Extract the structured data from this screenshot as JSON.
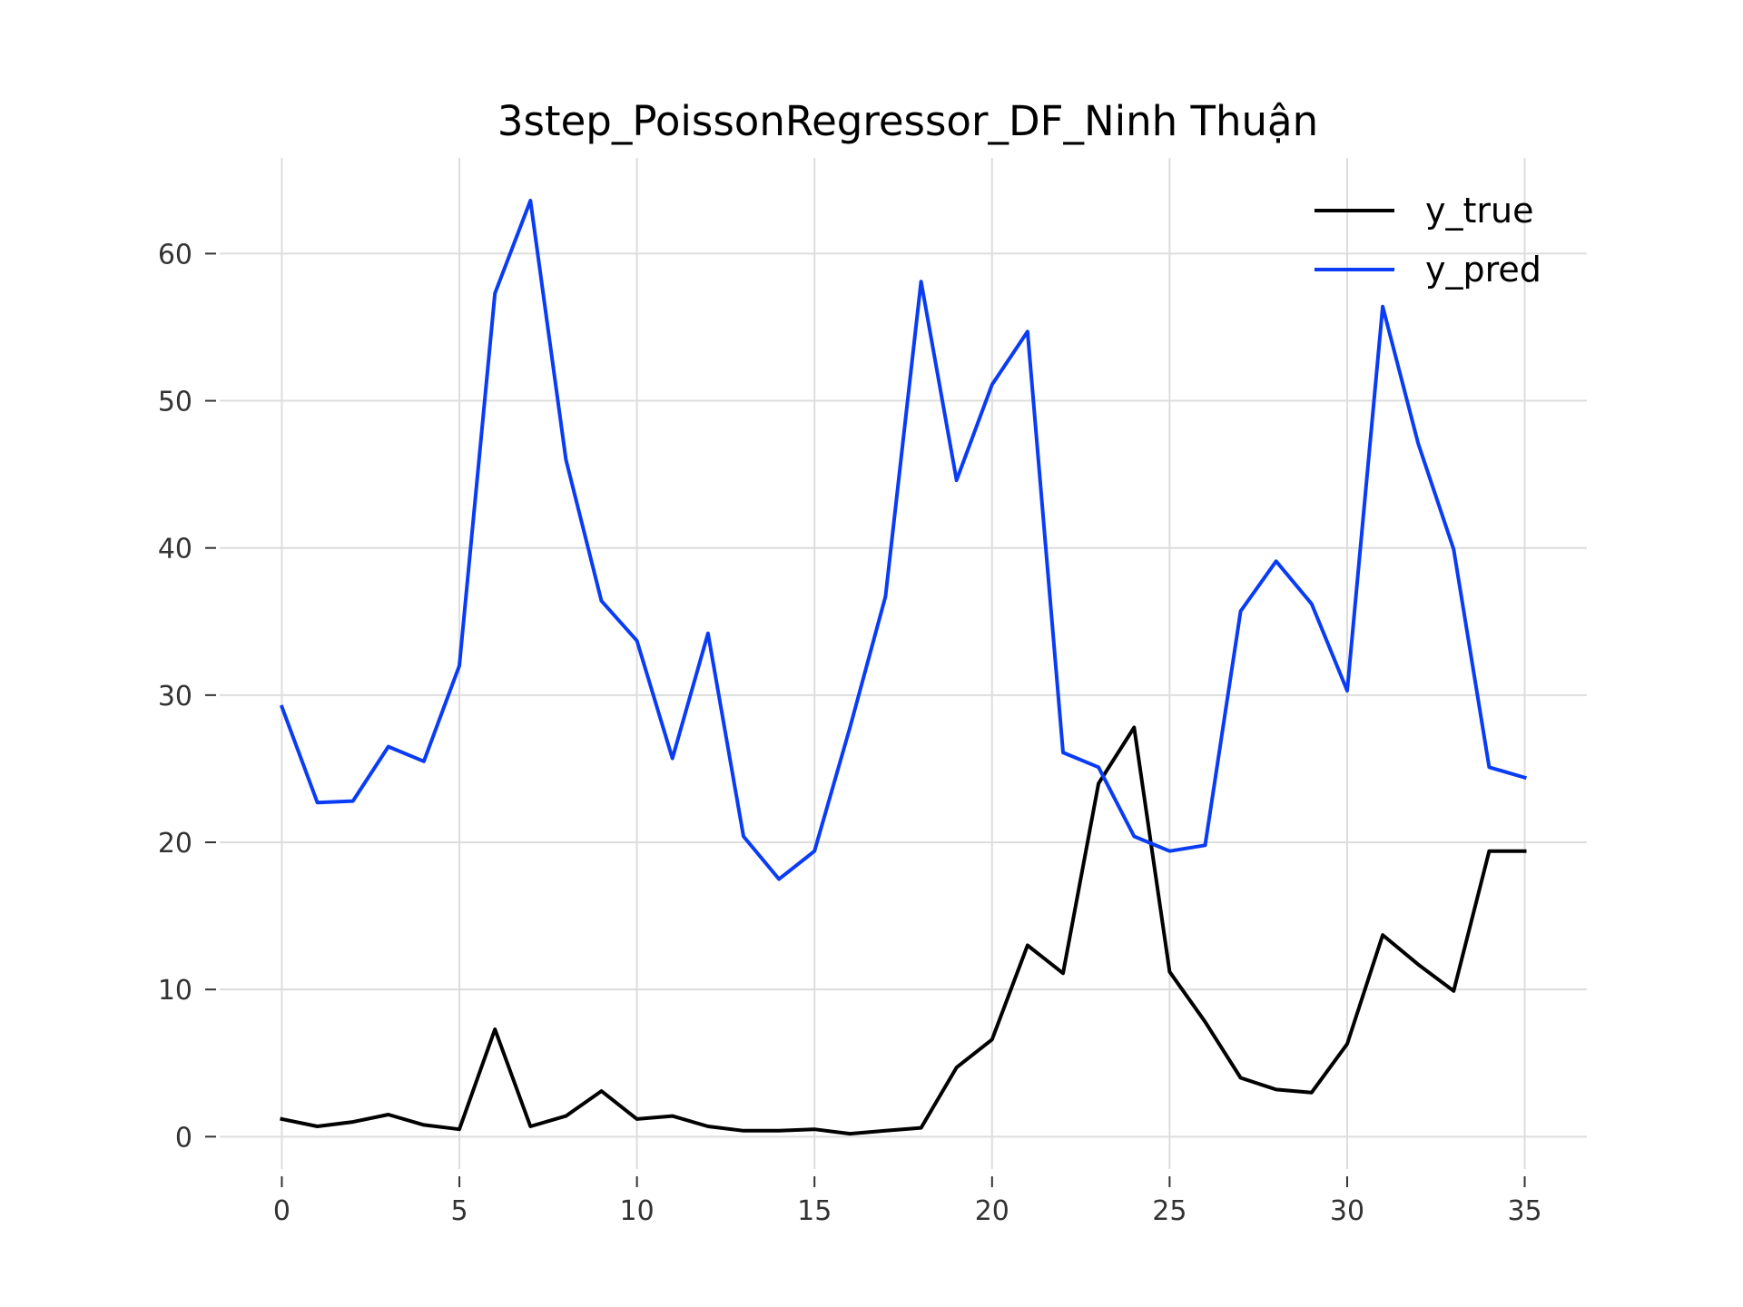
{
  "chart_data": {
    "type": "line",
    "title": "3step_PoissonRegressor_DF_Ninh Thuận",
    "xlabel": "",
    "ylabel": "",
    "x": [
      0,
      1,
      2,
      3,
      4,
      5,
      6,
      7,
      8,
      9,
      10,
      11,
      12,
      13,
      14,
      15,
      16,
      17,
      18,
      19,
      20,
      21,
      22,
      23,
      24,
      25,
      26,
      27,
      28,
      29,
      30,
      31,
      32,
      33,
      34,
      35
    ],
    "xticks": [
      0,
      5,
      10,
      15,
      20,
      25,
      30,
      35
    ],
    "xtick_labels": [
      "0",
      "5",
      "10",
      "15",
      "20",
      "25",
      "30",
      "35"
    ],
    "yticks": [
      0,
      10,
      20,
      30,
      40,
      50,
      60
    ],
    "ytick_labels": [
      "0",
      "10",
      "20",
      "30",
      "40",
      "50",
      "60"
    ],
    "xlim": [
      -1.75,
      36.75
    ],
    "ylim": [
      -2.2,
      66.5
    ],
    "grid": true,
    "legend_position": "top-right",
    "series": [
      {
        "name": "y_true",
        "color": "#000000",
        "values": [
          1.2,
          0.7,
          1.0,
          1.5,
          0.8,
          0.5,
          7.3,
          0.7,
          1.4,
          3.1,
          1.2,
          1.4,
          0.7,
          0.4,
          0.4,
          0.5,
          0.2,
          0.4,
          0.6,
          4.7,
          6.6,
          13.0,
          11.1,
          24.0,
          27.8,
          11.2,
          7.8,
          4.0,
          3.2,
          3.0,
          6.3,
          13.7,
          11.7,
          9.9,
          19.4,
          19.4
        ]
      },
      {
        "name": "y_pred",
        "color": "#0a3cf5",
        "values": [
          29.2,
          22.7,
          22.8,
          26.5,
          25.5,
          32.0,
          57.3,
          63.6,
          46.0,
          36.4,
          33.7,
          25.7,
          34.2,
          20.4,
          17.5,
          19.4,
          27.8,
          36.7,
          58.1,
          44.6,
          51.1,
          54.7,
          26.1,
          25.1,
          20.4,
          19.4,
          19.8,
          35.7,
          39.1,
          36.2,
          30.3,
          56.4,
          47.1,
          39.9,
          25.1,
          24.4
        ]
      }
    ]
  }
}
